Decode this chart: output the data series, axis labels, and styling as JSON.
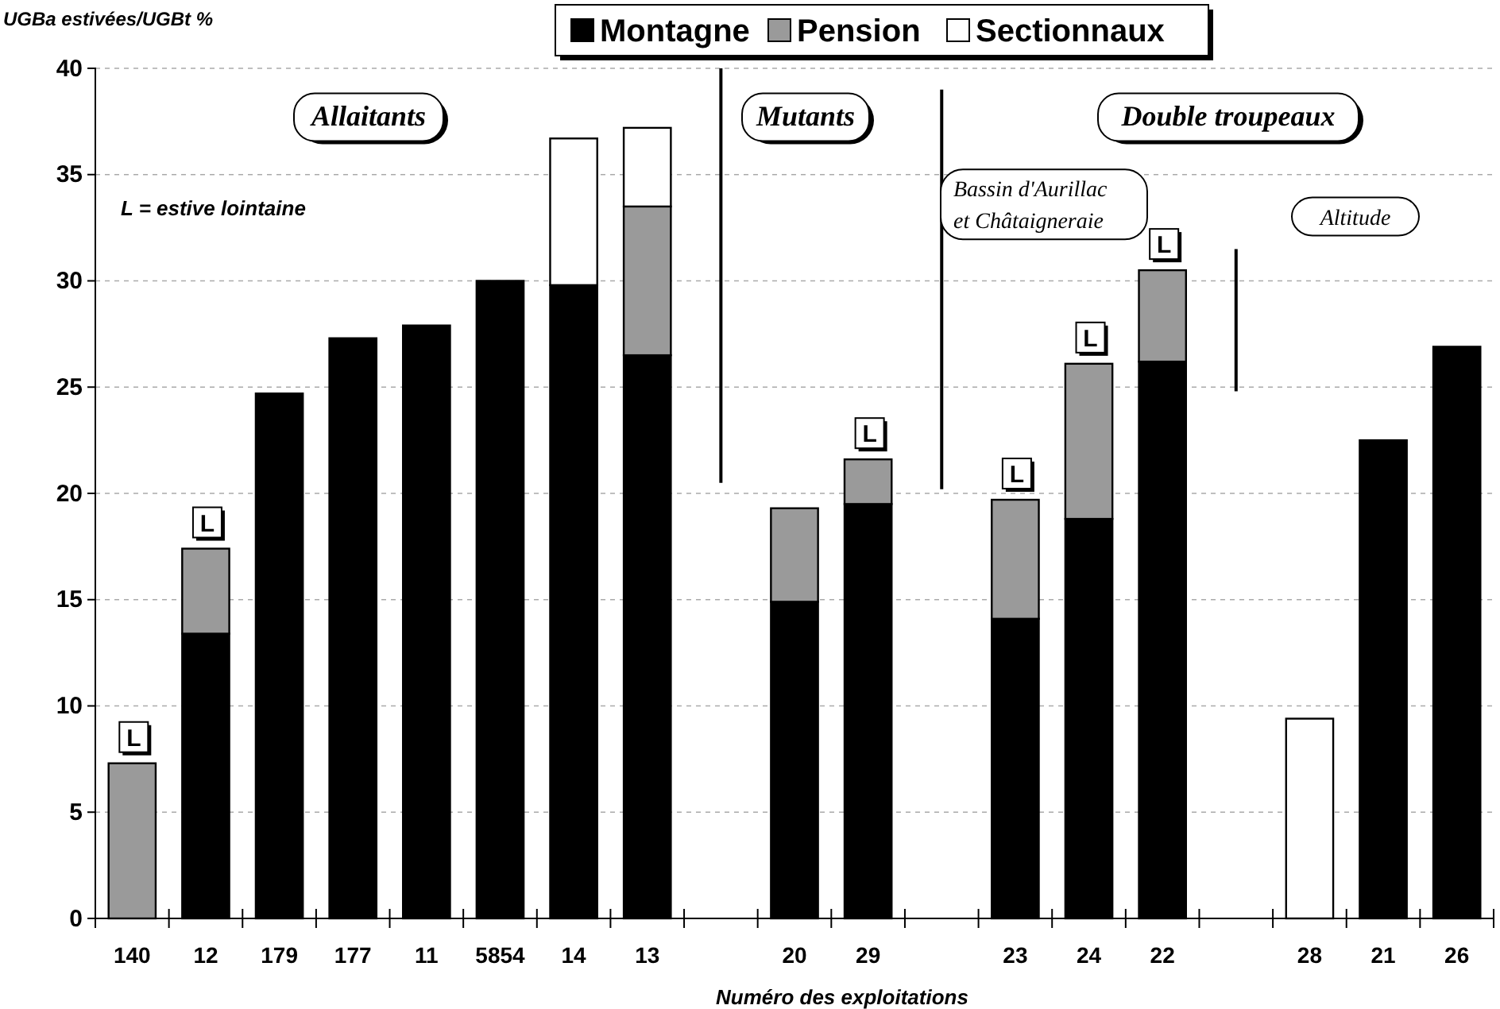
{
  "chart_data": {
    "type": "bar",
    "stacked": true,
    "xlabel": "Numéro des exploitations",
    "ylabel": "UGBa estivées/UGBt %",
    "categories": [
      "140",
      "12",
      "179",
      "177",
      "11",
      "5854",
      "14",
      "13",
      null,
      "20",
      "29",
      null,
      "23",
      "24",
      "22",
      null,
      "28",
      "21",
      "26"
    ],
    "series": [
      {
        "name": "Montagne",
        "color": "#000000",
        "values": [
          0,
          13.4,
          24.7,
          27.3,
          27.9,
          30.0,
          29.8,
          26.5,
          null,
          14.9,
          19.5,
          null,
          14.1,
          18.8,
          26.2,
          null,
          0,
          22.5,
          26.9
        ]
      },
      {
        "name": "Pension",
        "color": "#9a9a9a",
        "values": [
          7.3,
          4.0,
          0,
          0,
          0,
          0,
          0,
          7.0,
          null,
          4.4,
          2.1,
          null,
          5.6,
          7.3,
          4.3,
          null,
          0,
          0,
          0
        ]
      },
      {
        "name": "Sectionnaux",
        "color": "#ffffff",
        "values": [
          0,
          0,
          0,
          0,
          0,
          0,
          6.9,
          3.7,
          null,
          0,
          0,
          null,
          0,
          0,
          0,
          null,
          9.4,
          0,
          0
        ]
      }
    ],
    "ylim": [
      0,
      40
    ],
    "yticks": [
      0,
      5,
      10,
      15,
      20,
      25,
      30,
      35,
      40
    ],
    "grid": "y",
    "legend": "top",
    "annotations": [
      "Allaitants",
      "Mutants",
      "Double troupeaux",
      "Bassin d'Aurillac et Châtaigneraie",
      "Altitude",
      "L = estive lointaine",
      {
        "text": "L",
        "x": "140",
        "y": 7.3
      },
      {
        "text": "L",
        "x": "12",
        "y": 17.4
      },
      {
        "text": "L",
        "x": "29",
        "y": 21.6
      },
      {
        "text": "L",
        "x": "23",
        "y": 19.7
      },
      {
        "text": "L",
        "x": "24",
        "y": 26.1
      },
      {
        "text": "L",
        "x": "22",
        "y": 30.5
      }
    ]
  }
}
